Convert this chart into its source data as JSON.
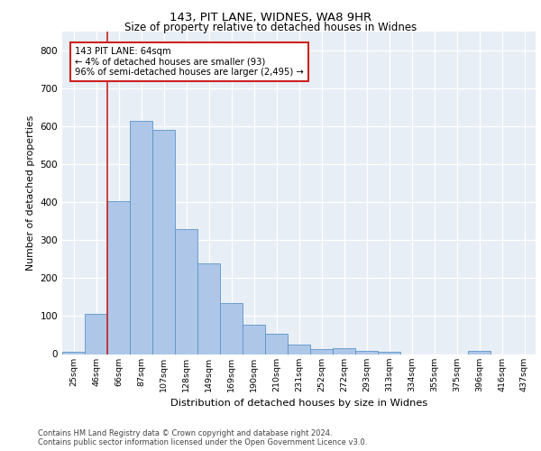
{
  "title1": "143, PIT LANE, WIDNES, WA8 9HR",
  "title2": "Size of property relative to detached houses in Widnes",
  "xlabel": "Distribution of detached houses by size in Widnes",
  "ylabel": "Number of detached properties",
  "bin_labels": [
    "25sqm",
    "46sqm",
    "66sqm",
    "87sqm",
    "107sqm",
    "128sqm",
    "149sqm",
    "169sqm",
    "190sqm",
    "210sqm",
    "231sqm",
    "252sqm",
    "272sqm",
    "293sqm",
    "313sqm",
    "334sqm",
    "355sqm",
    "375sqm",
    "396sqm",
    "416sqm",
    "437sqm"
  ],
  "bar_values": [
    7,
    106,
    403,
    614,
    591,
    330,
    238,
    135,
    78,
    53,
    25,
    14,
    16,
    8,
    5,
    0,
    0,
    0,
    9,
    0,
    0
  ],
  "bar_color": "#aec6e8",
  "bar_edge_color": "#5a96c8",
  "vline_xindex": 2,
  "vline_color": "#cc2222",
  "annotation_text": "143 PIT LANE: 64sqm\n← 4% of detached houses are smaller (93)\n96% of semi-detached houses are larger (2,495) →",
  "annotation_box_color": "white",
  "annotation_box_edge": "#cc2222",
  "ylim": [
    0,
    850
  ],
  "yticks": [
    0,
    100,
    200,
    300,
    400,
    500,
    600,
    700,
    800
  ],
  "background_color": "#e8eef5",
  "footer_line1": "Contains HM Land Registry data © Crown copyright and database right 2024.",
  "footer_line2": "Contains public sector information licensed under the Open Government Licence v3.0."
}
